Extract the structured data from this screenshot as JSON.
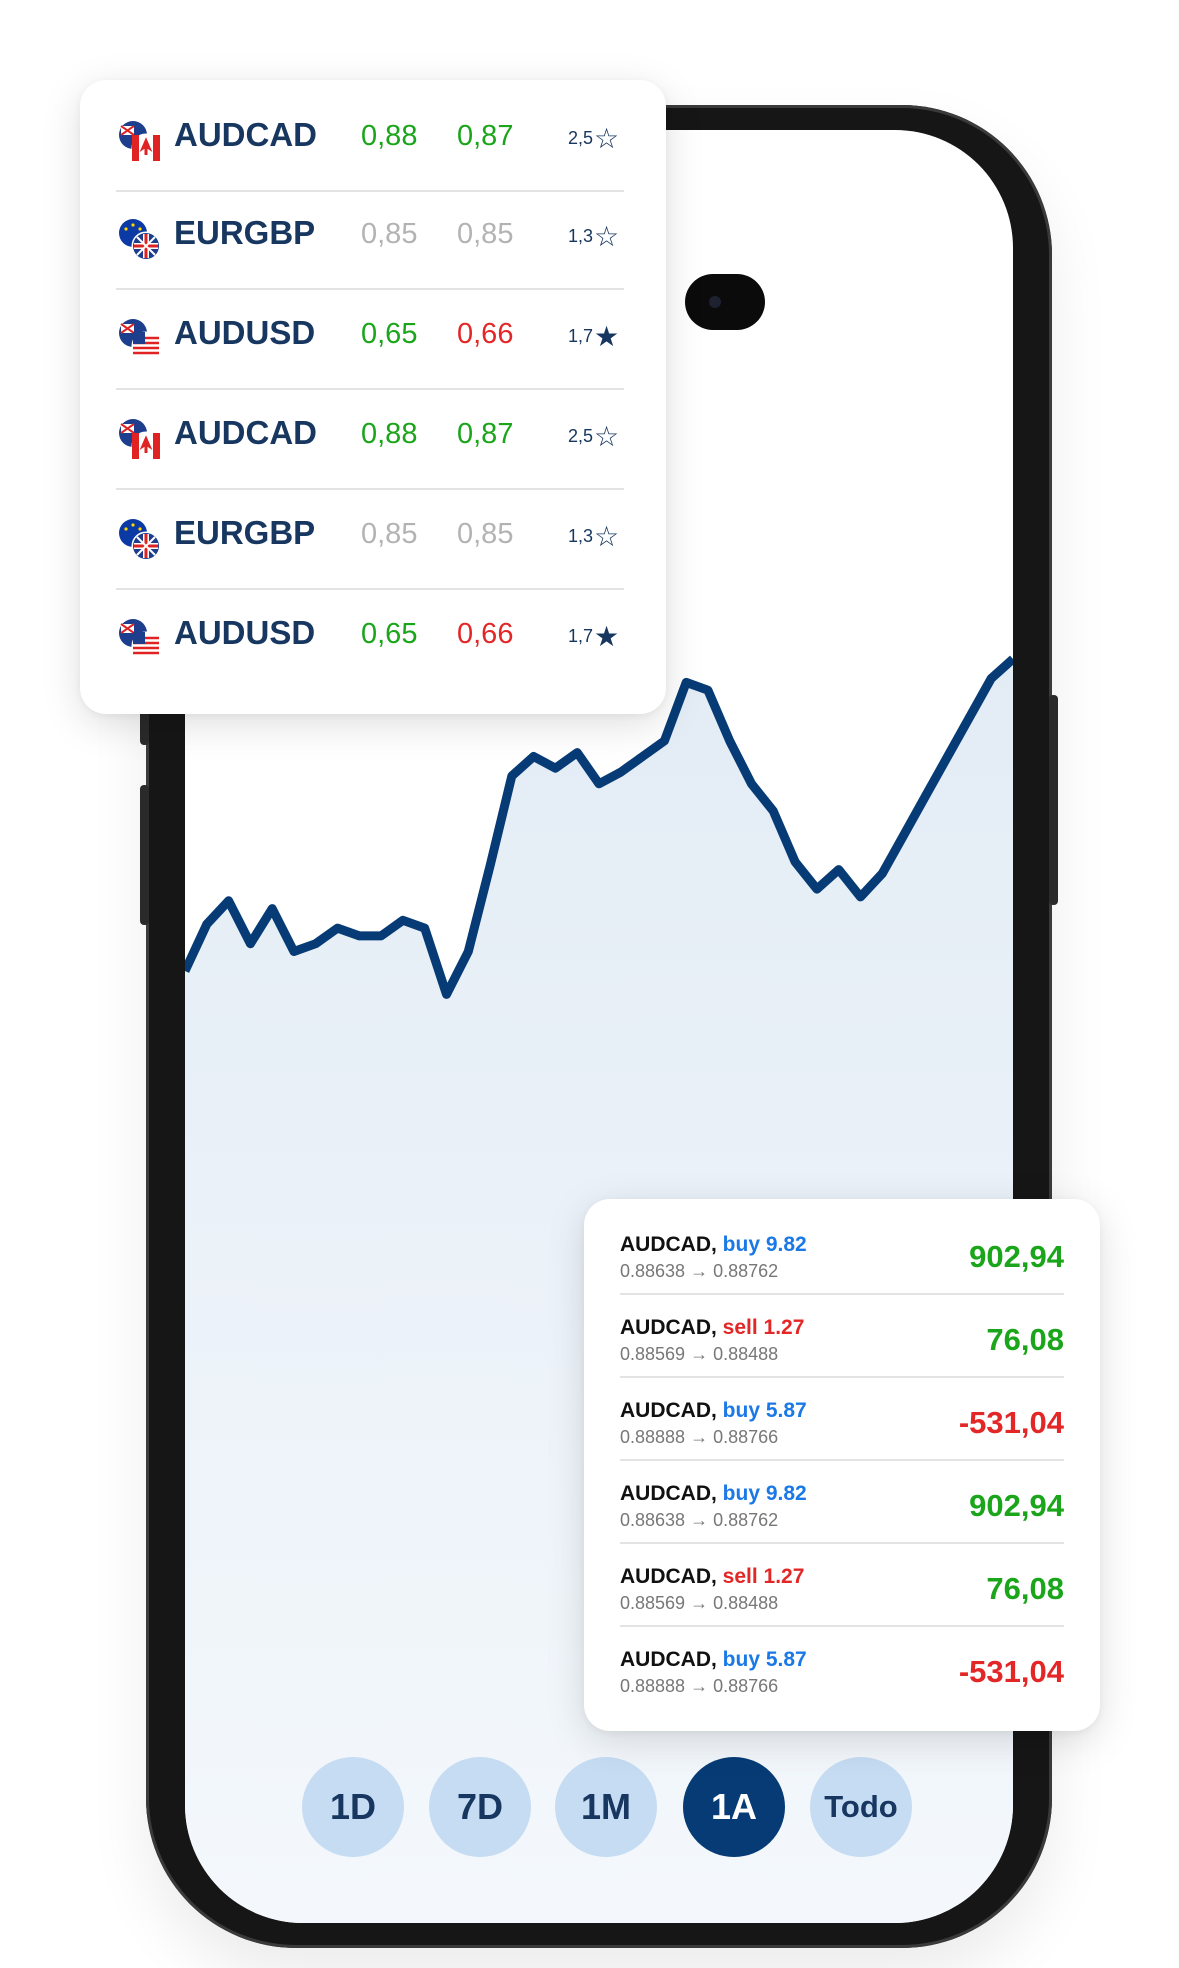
{
  "colors": {
    "accent_dark": "#063b75",
    "accent_light": "#c6dcf2",
    "chart_line": "#063b75",
    "chart_fill": "#e3ecf5",
    "positive": "#1aa51a",
    "negative": "#e32727",
    "neutral": "#b3b3b3",
    "buy": "#1a79e6",
    "sell": "#e32727"
  },
  "watchlist": [
    {
      "pair": "AUDCAD",
      "flag": "aud-cad-flag-icon",
      "bid": "0,88",
      "ask": "0,87",
      "bid_color": "green",
      "ask_color": "green",
      "rating": "2,5",
      "star": "☆"
    },
    {
      "pair": "EURGBP",
      "flag": "eur-gbp-flag-icon",
      "bid": "0,85",
      "ask": "0,85",
      "bid_color": "gray",
      "ask_color": "gray",
      "rating": "1,3",
      "star": "☆"
    },
    {
      "pair": "AUDUSD",
      "flag": "aud-usd-flag-icon",
      "bid": "0,65",
      "ask": "0,66",
      "bid_color": "green",
      "ask_color": "red",
      "rating": "1,7",
      "star": "★"
    },
    {
      "pair": "AUDCAD",
      "flag": "aud-cad-flag-icon",
      "bid": "0,88",
      "ask": "0,87",
      "bid_color": "green",
      "ask_color": "green",
      "rating": "2,5",
      "star": "☆"
    },
    {
      "pair": "EURGBP",
      "flag": "eur-gbp-flag-icon",
      "bid": "0,85",
      "ask": "0,85",
      "bid_color": "gray",
      "ask_color": "gray",
      "rating": "1,3",
      "star": "☆"
    },
    {
      "pair": "AUDUSD",
      "flag": "aud-usd-flag-icon",
      "bid": "0,65",
      "ask": "0,66",
      "bid_color": "green",
      "ask_color": "red",
      "rating": "1,7",
      "star": "★"
    }
  ],
  "trades": [
    {
      "pair": "AUDCAD,",
      "side": "buy",
      "size": "buy 9.82",
      "prices": "0.88638 → 0.88762",
      "pnl": "902,94",
      "pnl_sign": "positive"
    },
    {
      "pair": "AUDCAD,",
      "side": "sell",
      "size": "sell 1.27",
      "prices": "0.88569 → 0.88488",
      "pnl": "76,08",
      "pnl_sign": "positive"
    },
    {
      "pair": "AUDCAD,",
      "side": "buy",
      "size": "buy 5.87",
      "prices": "0.88888 → 0.88766",
      "pnl": "-531,04",
      "pnl_sign": "negative"
    },
    {
      "pair": "AUDCAD,",
      "side": "buy",
      "size": "buy 9.82",
      "prices": "0.88638 → 0.88762",
      "pnl": "902,94",
      "pnl_sign": "positive"
    },
    {
      "pair": "AUDCAD,",
      "side": "sell",
      "size": "sell 1.27",
      "prices": "0.88569 → 0.88488",
      "pnl": "76,08",
      "pnl_sign": "positive"
    },
    {
      "pair": "AUDCAD,",
      "side": "buy",
      "size": "buy 5.87",
      "prices": "0.88888 → 0.88766",
      "pnl": "-531,04",
      "pnl_sign": "negative"
    }
  ],
  "ranges": [
    {
      "label": "1D",
      "active": false
    },
    {
      "label": "7D",
      "active": false
    },
    {
      "label": "1M",
      "active": false
    },
    {
      "label": "1A",
      "active": true
    },
    {
      "label": "Todo",
      "active": false
    }
  ],
  "chart_data": {
    "type": "area",
    "title": "",
    "xlabel": "",
    "ylabel": "",
    "grid": false,
    "x": [
      0,
      1,
      2,
      3,
      4,
      5,
      6,
      7,
      8,
      9,
      10,
      11,
      12,
      13,
      14,
      15,
      16,
      17,
      18,
      19,
      20,
      21,
      22,
      23,
      24,
      25,
      26,
      27,
      28,
      29,
      30,
      31,
      32,
      33,
      34,
      35,
      36,
      37,
      38
    ],
    "series": [
      {
        "values": [
          10,
          22,
          28,
          17,
          26,
          15,
          17,
          21,
          19,
          19,
          23,
          21,
          4,
          15,
          37,
          60,
          65,
          62,
          66,
          58,
          61,
          65,
          69,
          84,
          82,
          69,
          58,
          51,
          38,
          31,
          36,
          29,
          35,
          45,
          55,
          65,
          75,
          85,
          90
        ]
      }
    ],
    "ylim": [
      0,
      100
    ]
  }
}
